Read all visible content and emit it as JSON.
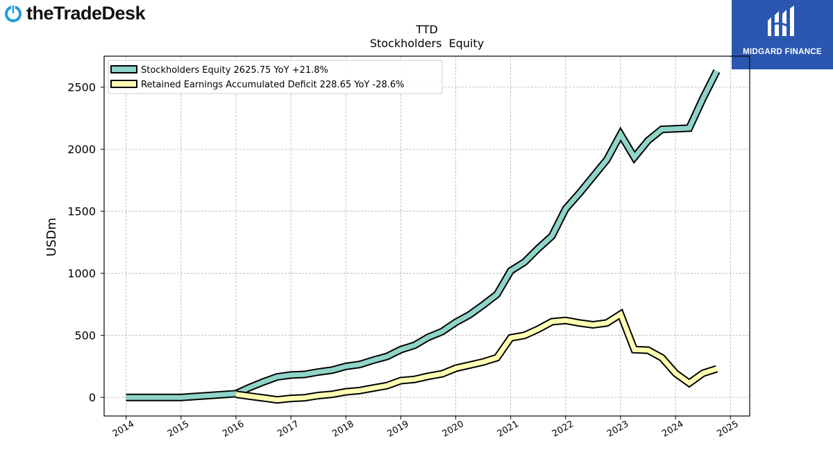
{
  "header": {
    "company_logo_text": "theTradeDesk",
    "sponsor_logo_text": "MIDGARD FINANCE"
  },
  "chart_data": {
    "type": "line",
    "title": "TTD",
    "subtitle": "Stockholders  Equity",
    "ylabel": "USDm",
    "xlabel": "",
    "xlim": [
      2013.6,
      2025.35
    ],
    "ylim": [
      -150,
      2750
    ],
    "x_ticks": [
      "2014",
      "2015",
      "2016",
      "2017",
      "2018",
      "2019",
      "2020",
      "2021",
      "2022",
      "2023",
      "2024",
      "2025"
    ],
    "y_ticks": [
      "0",
      "500",
      "1000",
      "1500",
      "2000",
      "2500"
    ],
    "grid": true,
    "legend_position": "top-left",
    "series": [
      {
        "name": "Stockholders Equity  2625.75 YoY +21.8%",
        "color": "#8fd4c8",
        "points": [
          [
            2014.0,
            0
          ],
          [
            2015.0,
            0
          ],
          [
            2016.0,
            30
          ],
          [
            2016.25,
            80
          ],
          [
            2016.5,
            125
          ],
          [
            2016.75,
            165
          ],
          [
            2017.0,
            180
          ],
          [
            2017.25,
            185
          ],
          [
            2017.5,
            205
          ],
          [
            2017.75,
            220
          ],
          [
            2018.0,
            250
          ],
          [
            2018.25,
            265
          ],
          [
            2018.5,
            300
          ],
          [
            2018.75,
            330
          ],
          [
            2019.0,
            385
          ],
          [
            2019.25,
            420
          ],
          [
            2019.5,
            485
          ],
          [
            2019.75,
            530
          ],
          [
            2020.0,
            605
          ],
          [
            2020.25,
            665
          ],
          [
            2020.5,
            745
          ],
          [
            2020.75,
            830
          ],
          [
            2021.0,
            1020
          ],
          [
            2021.25,
            1090
          ],
          [
            2021.5,
            1200
          ],
          [
            2021.75,
            1300
          ],
          [
            2022.0,
            1520
          ],
          [
            2022.25,
            1645
          ],
          [
            2022.5,
            1780
          ],
          [
            2022.75,
            1915
          ],
          [
            2023.0,
            2120
          ],
          [
            2023.25,
            1935
          ],
          [
            2023.5,
            2070
          ],
          [
            2023.75,
            2160
          ],
          [
            2024.0,
            2165
          ],
          [
            2024.25,
            2170
          ],
          [
            2024.5,
            2410
          ],
          [
            2024.75,
            2630
          ]
        ]
      },
      {
        "name": "Retained Earnings Accumulated Deficit  228.65 YoY -28.6%",
        "color": "#ffffb3",
        "points": [
          [
            2016.0,
            25
          ],
          [
            2016.25,
            10
          ],
          [
            2016.5,
            -5
          ],
          [
            2016.75,
            -20
          ],
          [
            2017.0,
            -8
          ],
          [
            2017.25,
            -3
          ],
          [
            2017.5,
            15
          ],
          [
            2017.75,
            25
          ],
          [
            2018.0,
            45
          ],
          [
            2018.25,
            55
          ],
          [
            2018.5,
            75
          ],
          [
            2018.75,
            95
          ],
          [
            2019.0,
            135
          ],
          [
            2019.25,
            145
          ],
          [
            2019.5,
            170
          ],
          [
            2019.75,
            190
          ],
          [
            2020.0,
            235
          ],
          [
            2020.25,
            260
          ],
          [
            2020.5,
            285
          ],
          [
            2020.75,
            320
          ],
          [
            2021.0,
            480
          ],
          [
            2021.25,
            500
          ],
          [
            2021.5,
            550
          ],
          [
            2021.75,
            610
          ],
          [
            2022.0,
            620
          ],
          [
            2022.25,
            600
          ],
          [
            2022.5,
            585
          ],
          [
            2022.75,
            600
          ],
          [
            2023.0,
            670
          ],
          [
            2023.25,
            385
          ],
          [
            2023.5,
            380
          ],
          [
            2023.75,
            320
          ],
          [
            2024.0,
            195
          ],
          [
            2024.25,
            115
          ],
          [
            2024.5,
            195
          ],
          [
            2024.75,
            230
          ]
        ]
      }
    ]
  }
}
